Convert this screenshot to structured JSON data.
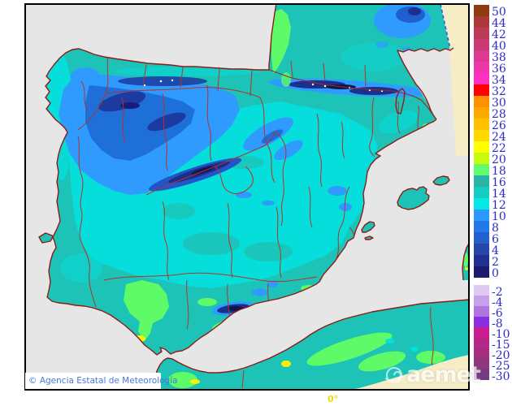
{
  "map": {
    "sea_color": "#E6E6E6",
    "outside_domain_color": "#F6EDC6",
    "frame_color": "#000000",
    "coastline_color": "#8E1C14",
    "border_color": "#B43228",
    "domain_boundary_color": "#3355DD",
    "longitude_label": "0°",
    "longitude_label_color": "#EDE000"
  },
  "attribution": {
    "text": "© Agencia Estatal de Meteorología"
  },
  "watermark": {
    "text": "aemet"
  },
  "colorbar": {
    "label_color": "#2A2ACA",
    "upper": [
      {
        "value": "50",
        "color": "#8F3A0F"
      },
      {
        "value": "44",
        "color": "#A93836"
      },
      {
        "value": "42",
        "color": "#BC3A58"
      },
      {
        "value": "40",
        "color": "#C93A74"
      },
      {
        "value": "38",
        "color": "#DC3A92"
      },
      {
        "value": "36",
        "color": "#EF37AC"
      },
      {
        "value": "34",
        "color": "#FF2FC4"
      },
      {
        "value": "32",
        "color": "#FE0000"
      },
      {
        "value": "30",
        "color": "#FF9000"
      },
      {
        "value": "28",
        "color": "#FFA800"
      },
      {
        "value": "26",
        "color": "#FFC000"
      },
      {
        "value": "24",
        "color": "#FFD800"
      },
      {
        "value": "22",
        "color": "#FEFE00"
      },
      {
        "value": "20",
        "color": "#C8FC0C"
      },
      {
        "value": "18",
        "color": "#63FB6C"
      },
      {
        "value": "16",
        "color": "#2AB4A6"
      },
      {
        "value": "14",
        "color": "#16CBC3"
      },
      {
        "value": "12",
        "color": "#04E8E4"
      },
      {
        "value": "10",
        "color": "#2B99FE"
      },
      {
        "value": "8",
        "color": "#2379EA"
      },
      {
        "value": "6",
        "color": "#2360CB"
      },
      {
        "value": "4",
        "color": "#2646A8"
      },
      {
        "value": "2",
        "color": "#20308E"
      },
      {
        "value": "0",
        "color": "#1C1C6E"
      }
    ],
    "lower": [
      {
        "value": "-2",
        "color": "#DDC9F1"
      },
      {
        "value": "-4",
        "color": "#C7A0EA"
      },
      {
        "value": "-6",
        "color": "#AE75DF"
      },
      {
        "value": "-8",
        "color": "#8B2FE3"
      },
      {
        "value": "-10",
        "color": "#CB1D8F"
      },
      {
        "value": "-15",
        "color": "#B72787"
      },
      {
        "value": "-20",
        "color": "#A32F7E"
      },
      {
        "value": "-25",
        "color": "#8F377C"
      },
      {
        "value": "-30",
        "color": "#763A82"
      }
    ]
  }
}
